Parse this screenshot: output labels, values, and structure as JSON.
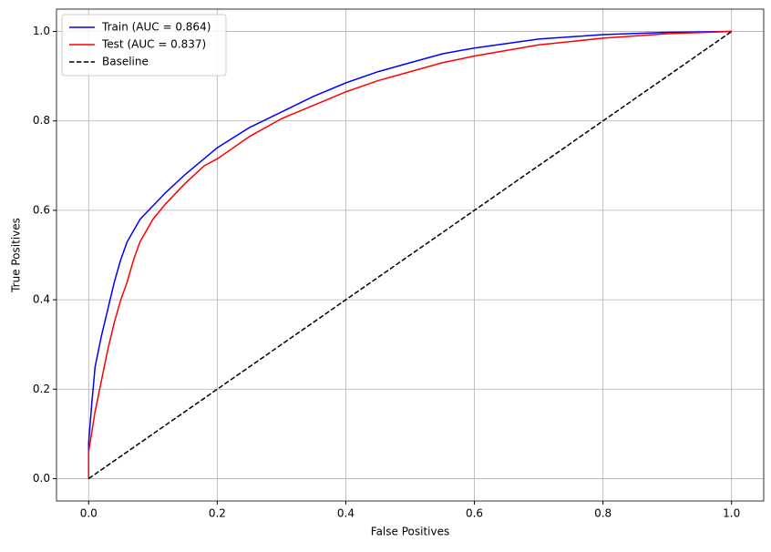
{
  "chart_data": {
    "type": "line",
    "xlabel": "False Positives",
    "ylabel": "True Positives",
    "xlim": [
      -0.05,
      1.05
    ],
    "ylim": [
      -0.05,
      1.05
    ],
    "xticks": [
      {
        "value": 0,
        "label": "0.0"
      },
      {
        "value": 0.2,
        "label": "0.2"
      },
      {
        "value": 0.4,
        "label": "0.4"
      },
      {
        "value": 0.6,
        "label": "0.6"
      },
      {
        "value": 0.8,
        "label": "0.8"
      },
      {
        "value": 1,
        "label": "1.0"
      }
    ],
    "yticks": [
      {
        "value": 0,
        "label": "0.0"
      },
      {
        "value": 0.2,
        "label": "0.2"
      },
      {
        "value": 0.4,
        "label": "0.4"
      },
      {
        "value": 0.6,
        "label": "0.6"
      },
      {
        "value": 0.8,
        "label": "0.8"
      },
      {
        "value": 1,
        "label": "1.0"
      }
    ],
    "grid": true,
    "legend": "upper-left",
    "series": [
      {
        "name": "Train (AUC = 0.864)",
        "color": "#0000ff",
        "dash": "solid",
        "x": [
          0,
          0,
          0.005,
          0.01,
          0.02,
          0.03,
          0.04,
          0.05,
          0.06,
          0.08,
          0.1,
          0.12,
          0.15,
          0.2,
          0.25,
          0.3,
          0.35,
          0.4,
          0.45,
          0.5,
          0.55,
          0.6,
          0.7,
          0.8,
          0.9,
          1
        ],
        "values": [
          0,
          0.08,
          0.17,
          0.25,
          0.32,
          0.38,
          0.44,
          0.49,
          0.53,
          0.58,
          0.61,
          0.64,
          0.68,
          0.74,
          0.785,
          0.82,
          0.855,
          0.885,
          0.91,
          0.93,
          0.95,
          0.963,
          0.983,
          0.993,
          0.998,
          1
        ]
      },
      {
        "name": "Test (AUC = 0.837)",
        "color": "#ff0000",
        "dash": "solid",
        "x": [
          0,
          0,
          0.01,
          0.02,
          0.03,
          0.04,
          0.05,
          0.06,
          0.07,
          0.08,
          0.1,
          0.12,
          0.15,
          0.18,
          0.2,
          0.25,
          0.3,
          0.35,
          0.4,
          0.45,
          0.5,
          0.55,
          0.6,
          0.7,
          0.8,
          0.9,
          1
        ],
        "values": [
          0,
          0.06,
          0.15,
          0.22,
          0.29,
          0.35,
          0.4,
          0.44,
          0.49,
          0.53,
          0.58,
          0.615,
          0.66,
          0.7,
          0.715,
          0.765,
          0.805,
          0.835,
          0.865,
          0.89,
          0.91,
          0.93,
          0.945,
          0.97,
          0.985,
          0.995,
          1
        ]
      },
      {
        "name": "Baseline",
        "color": "#000000",
        "dash": "dashed",
        "x": [
          0,
          1
        ],
        "values": [
          0,
          1
        ]
      }
    ]
  }
}
